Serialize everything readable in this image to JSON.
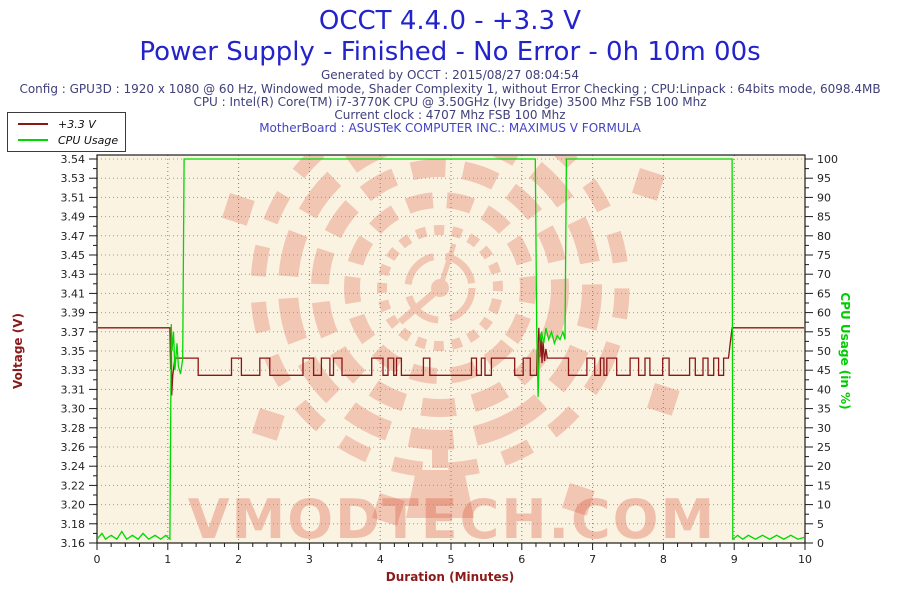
{
  "header": {
    "title_line1": "OCCT 4.4.0 - +3.3 V",
    "title_line2": "Power Supply - Finished - No Error - 0h 10m 00s",
    "generated_line": "Generated by OCCT : 2015/08/27 08:04:54",
    "config_line": "Config : GPU3D : 1920 x 1080 @ 60 Hz, Windowed mode, Shader Complexity 1, without Error Checking ; CPU:Linpack : 64bits mode, 6098.4MB",
    "cpu_line": "CPU : Intel(R) Core(TM) i7-3770K CPU @ 3.50GHz (Ivy Bridge) 3500 Mhz FSB 100 Mhz",
    "clock_line": "Current clock : 4707 Mhz FSB 100 Mhz",
    "motherboard_line": "MotherBoard : ASUSTeK COMPUTER INC.: MAXIMUS V FORMULA"
  },
  "legend": {
    "items": [
      {
        "label": "+3.3 V",
        "color": "#8b1616"
      },
      {
        "label": "CPU Usage",
        "color": "#00d900"
      }
    ]
  },
  "chart_data": {
    "type": "line",
    "title": "OCCT 4.4.0 - +3.3 V",
    "plot_bg": "#faf3e2",
    "grid": "dotted",
    "legend_position": "top-left",
    "x_axis": {
      "label": "Duration (Minutes)",
      "min": 0,
      "max": 10,
      "tick_labels": [
        "0",
        "1",
        "2",
        "3",
        "4",
        "5",
        "6",
        "7",
        "8",
        "9",
        "10"
      ],
      "minor_per_major": 5
    },
    "y_left": {
      "label": "Voltage (V)",
      "min": 3.16,
      "max": 3.54,
      "color": "#8b1a1a",
      "tick_labels": [
        "3.16",
        "3.18",
        "3.20",
        "3.22",
        "3.24",
        "3.26",
        "3.28",
        "3.30",
        "3.31",
        "3.33",
        "3.35",
        "3.37",
        "3.39",
        "3.41",
        "3.43",
        "3.45",
        "3.47",
        "3.49",
        "3.51",
        "3.53",
        "3.54"
      ]
    },
    "y_right": {
      "label": "CPU Usage (in %)",
      "min": 0,
      "max": 100,
      "color": "#00cc00",
      "tick_labels": [
        "0",
        "5",
        "10",
        "15",
        "20",
        "25",
        "30",
        "35",
        "40",
        "45",
        "50",
        "55",
        "60",
        "65",
        "70",
        "75",
        "80",
        "85",
        "90",
        "95",
        "100"
      ]
    },
    "watermark": {
      "text": "VMODTECH.COM",
      "color": "#d84a32"
    },
    "series": [
      {
        "name": "+3.3 V",
        "axis": "left",
        "color": "#8b1616",
        "points": [
          [
            0,
            3.373
          ],
          [
            1.03,
            3.373
          ],
          [
            1.04,
            3.332
          ],
          [
            1.05,
            3.367
          ],
          [
            1.055,
            3.306
          ],
          [
            1.07,
            3.326
          ],
          [
            1.1,
            3.343
          ],
          [
            1.43,
            3.343
          ],
          [
            1.43,
            3.326
          ],
          [
            1.9,
            3.326
          ],
          [
            1.9,
            3.343
          ],
          [
            2.04,
            3.343
          ],
          [
            2.04,
            3.326
          ],
          [
            2.3,
            3.326
          ],
          [
            2.3,
            3.343
          ],
          [
            2.44,
            3.343
          ],
          [
            2.44,
            3.326
          ],
          [
            2.91,
            3.326
          ],
          [
            2.91,
            3.343
          ],
          [
            3.06,
            3.343
          ],
          [
            3.06,
            3.326
          ],
          [
            3.17,
            3.326
          ],
          [
            3.17,
            3.343
          ],
          [
            3.29,
            3.343
          ],
          [
            3.29,
            3.326
          ],
          [
            3.34,
            3.326
          ],
          [
            3.34,
            3.343
          ],
          [
            3.46,
            3.343
          ],
          [
            3.46,
            3.326
          ],
          [
            3.88,
            3.326
          ],
          [
            3.88,
            3.343
          ],
          [
            4.04,
            3.343
          ],
          [
            4.04,
            3.326
          ],
          [
            4.11,
            3.326
          ],
          [
            4.11,
            3.343
          ],
          [
            4.19,
            3.343
          ],
          [
            4.19,
            3.326
          ],
          [
            4.23,
            3.326
          ],
          [
            4.23,
            3.343
          ],
          [
            4.3,
            3.343
          ],
          [
            4.3,
            3.326
          ],
          [
            4.61,
            3.326
          ],
          [
            4.61,
            3.343
          ],
          [
            4.7,
            3.343
          ],
          [
            4.7,
            3.326
          ],
          [
            5.29,
            3.326
          ],
          [
            5.29,
            3.343
          ],
          [
            5.36,
            3.343
          ],
          [
            5.36,
            3.326
          ],
          [
            5.43,
            3.326
          ],
          [
            5.43,
            3.343
          ],
          [
            5.48,
            3.343
          ],
          [
            5.48,
            3.326
          ],
          [
            5.57,
            3.326
          ],
          [
            5.57,
            3.343
          ],
          [
            5.9,
            3.343
          ],
          [
            5.9,
            3.326
          ],
          [
            6.02,
            3.326
          ],
          [
            6.02,
            3.343
          ],
          [
            6.12,
            3.343
          ],
          [
            6.12,
            3.326
          ],
          [
            6.21,
            3.326
          ],
          [
            6.215,
            3.352
          ],
          [
            6.225,
            3.334
          ],
          [
            6.24,
            3.373
          ],
          [
            6.255,
            3.344
          ],
          [
            6.27,
            3.367
          ],
          [
            6.285,
            3.338
          ],
          [
            6.3,
            3.36
          ],
          [
            6.32,
            3.34
          ],
          [
            6.34,
            3.352
          ],
          [
            6.36,
            3.343
          ],
          [
            6.66,
            3.343
          ],
          [
            6.66,
            3.326
          ],
          [
            6.92,
            3.326
          ],
          [
            6.92,
            3.343
          ],
          [
            7.03,
            3.343
          ],
          [
            7.03,
            3.326
          ],
          [
            7.11,
            3.326
          ],
          [
            7.11,
            3.343
          ],
          [
            7.16,
            3.343
          ],
          [
            7.16,
            3.326
          ],
          [
            7.2,
            3.326
          ],
          [
            7.2,
            3.343
          ],
          [
            7.34,
            3.343
          ],
          [
            7.34,
            3.326
          ],
          [
            7.53,
            3.326
          ],
          [
            7.53,
            3.343
          ],
          [
            7.65,
            3.343
          ],
          [
            7.65,
            3.326
          ],
          [
            7.74,
            3.326
          ],
          [
            7.74,
            3.343
          ],
          [
            7.81,
            3.343
          ],
          [
            7.81,
            3.326
          ],
          [
            7.99,
            3.326
          ],
          [
            7.99,
            3.343
          ],
          [
            8.08,
            3.343
          ],
          [
            8.08,
            3.326
          ],
          [
            8.37,
            3.326
          ],
          [
            8.37,
            3.343
          ],
          [
            8.45,
            3.343
          ],
          [
            8.45,
            3.326
          ],
          [
            8.56,
            3.326
          ],
          [
            8.56,
            3.343
          ],
          [
            8.63,
            3.343
          ],
          [
            8.63,
            3.326
          ],
          [
            8.71,
            3.326
          ],
          [
            8.71,
            3.343
          ],
          [
            8.78,
            3.343
          ],
          [
            8.78,
            3.326
          ],
          [
            8.85,
            3.326
          ],
          [
            8.85,
            3.343
          ],
          [
            8.92,
            3.343
          ],
          [
            8.94,
            3.356
          ],
          [
            8.97,
            3.373
          ],
          [
            10,
            3.373
          ]
        ]
      },
      {
        "name": "CPU Usage",
        "axis": "right",
        "color": "#00d900",
        "points": [
          [
            0,
            1
          ],
          [
            0.07,
            2.5
          ],
          [
            0.12,
            1
          ],
          [
            0.2,
            2
          ],
          [
            0.28,
            1
          ],
          [
            0.35,
            3
          ],
          [
            0.42,
            1
          ],
          [
            0.5,
            2
          ],
          [
            0.58,
            1
          ],
          [
            0.65,
            2.5
          ],
          [
            0.73,
            1
          ],
          [
            0.82,
            2
          ],
          [
            0.9,
            1
          ],
          [
            0.97,
            2
          ],
          [
            1.03,
            1
          ],
          [
            1.05,
            57
          ],
          [
            1.06,
            50
          ],
          [
            1.08,
            55
          ],
          [
            1.1,
            45
          ],
          [
            1.13,
            52
          ],
          [
            1.15,
            46
          ],
          [
            1.18,
            44
          ],
          [
            1.21,
            48
          ],
          [
            1.23,
            100
          ],
          [
            6.19,
            100
          ],
          [
            6.21,
            56
          ],
          [
            6.23,
            38
          ],
          [
            6.25,
            52
          ],
          [
            6.28,
            55
          ],
          [
            6.31,
            52
          ],
          [
            6.34,
            56
          ],
          [
            6.38,
            53
          ],
          [
            6.42,
            55
          ],
          [
            6.46,
            52
          ],
          [
            6.5,
            54
          ],
          [
            6.54,
            53
          ],
          [
            6.58,
            55
          ],
          [
            6.61,
            53
          ],
          [
            6.63,
            100
          ],
          [
            8.97,
            100
          ],
          [
            8.98,
            1
          ],
          [
            9.05,
            2
          ],
          [
            9.12,
            1
          ],
          [
            9.2,
            2
          ],
          [
            9.3,
            1
          ],
          [
            9.4,
            2
          ],
          [
            9.5,
            1
          ],
          [
            9.6,
            2
          ],
          [
            9.7,
            1
          ],
          [
            9.8,
            2
          ],
          [
            9.9,
            1
          ],
          [
            10,
            1.5
          ]
        ]
      }
    ]
  }
}
